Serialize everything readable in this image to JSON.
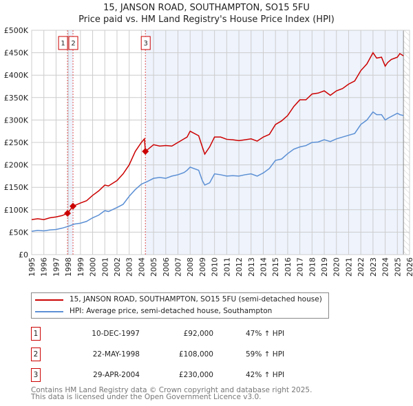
{
  "chart_data": {
    "type": "line",
    "title": "15, JANSON ROAD, SOUTHAMPTON, SO15 5FU",
    "subtitle": "Price paid vs. HM Land Registry's House Price Index (HPI)",
    "xlim": [
      1995,
      2026
    ],
    "ylim": [
      0,
      500000
    ],
    "x_ticks": [
      "1995",
      "1996",
      "1997",
      "1998",
      "1999",
      "2000",
      "2001",
      "2002",
      "2003",
      "2004",
      "2005",
      "2006",
      "2007",
      "2008",
      "2009",
      "2010",
      "2011",
      "2012",
      "2013",
      "2014",
      "2015",
      "2016",
      "2017",
      "2018",
      "2019",
      "2020",
      "2021",
      "2022",
      "2023",
      "2024",
      "2025",
      "2026"
    ],
    "y_ticks": [
      {
        "v": 0,
        "label": "£0"
      },
      {
        "v": 50000,
        "label": "£50K"
      },
      {
        "v": 100000,
        "label": "£100K"
      },
      {
        "v": 150000,
        "label": "£150K"
      },
      {
        "v": 200000,
        "label": "£200K"
      },
      {
        "v": 250000,
        "label": "£250K"
      },
      {
        "v": 300000,
        "label": "£300K"
      },
      {
        "v": 350000,
        "label": "£350K"
      },
      {
        "v": 400000,
        "label": "£400K"
      },
      {
        "v": 450000,
        "label": "£450K"
      },
      {
        "v": 500000,
        "label": "£500K"
      }
    ],
    "grid": true,
    "data_end": 2025.5,
    "series": [
      {
        "name": "15, JANSON ROAD, SOUTHAMPTON, SO15 5FU (semi-detached house)",
        "color": "#cc0000",
        "x": [
          1995,
          1995.5,
          1996,
          1996.5,
          1997,
          1997.5,
          1997.94,
          1998.39,
          1999,
          1999.5,
          2000,
          2000.5,
          2001,
          2001.3,
          2002,
          2002.5,
          2003,
          2003.5,
          2004,
          2004.25,
          2004.33,
          2005,
          2005.5,
          2006,
          2006.5,
          2007,
          2007.5,
          2007.75,
          2008,
          2008.7,
          2009,
          2009.2,
          2009.6,
          2010,
          2010.5,
          2011,
          2011.5,
          2012,
          2012.5,
          2013,
          2013.5,
          2014,
          2014.5,
          2015,
          2015.5,
          2016,
          2016.5,
          2017,
          2017.5,
          2018,
          2018.5,
          2019,
          2019.5,
          2020,
          2020.5,
          2021,
          2021.5,
          2022,
          2022.5,
          2023,
          2023.3,
          2023.7,
          2024,
          2024.2,
          2024.5,
          2025,
          2025.2,
          2025.5
        ],
        "y": [
          78000,
          80000,
          78000,
          82000,
          84000,
          87000,
          92000,
          108000,
          115000,
          120000,
          132000,
          142000,
          155000,
          153000,
          165000,
          180000,
          200000,
          230000,
          250000,
          258000,
          230000,
          245000,
          242000,
          243000,
          242000,
          250000,
          258000,
          262000,
          275000,
          265000,
          240000,
          224000,
          240000,
          262000,
          262000,
          257000,
          256000,
          254000,
          256000,
          258000,
          253000,
          262000,
          268000,
          290000,
          298000,
          310000,
          330000,
          345000,
          345000,
          358000,
          360000,
          365000,
          355000,
          365000,
          370000,
          380000,
          387000,
          410000,
          425000,
          450000,
          438000,
          440000,
          420000,
          428000,
          435000,
          440000,
          448000,
          443000
        ]
      },
      {
        "name": "HPI: Average price, semi-detached house, Southampton",
        "color": "#5b8fd4",
        "x": [
          1995,
          1995.5,
          1996,
          1996.5,
          1997,
          1997.5,
          1998,
          1998.5,
          1999,
          1999.5,
          2000,
          2000.5,
          2001,
          2001.3,
          2002,
          2002.5,
          2003,
          2003.5,
          2004,
          2004.5,
          2005,
          2005.5,
          2006,
          2006.5,
          2007,
          2007.5,
          2007.75,
          2008,
          2008.7,
          2009,
          2009.2,
          2009.6,
          2010,
          2010.5,
          2011,
          2011.5,
          2012,
          2012.5,
          2013,
          2013.5,
          2014,
          2014.5,
          2015,
          2015.5,
          2016,
          2016.5,
          2017,
          2017.5,
          2018,
          2018.5,
          2019,
          2019.5,
          2020,
          2020.5,
          2021,
          2021.5,
          2022,
          2022.5,
          2023,
          2023.3,
          2023.7,
          2024,
          2024.3,
          2025,
          2025.2,
          2025.5
        ],
        "y": [
          52000,
          54000,
          53000,
          55000,
          56000,
          59000,
          63000,
          68000,
          70000,
          74000,
          82000,
          88000,
          98000,
          96000,
          105000,
          112000,
          130000,
          145000,
          157000,
          163000,
          170000,
          172000,
          170000,
          175000,
          178000,
          183000,
          188000,
          195000,
          188000,
          165000,
          155000,
          160000,
          180000,
          178000,
          175000,
          176000,
          175000,
          178000,
          180000,
          175000,
          182000,
          192000,
          210000,
          213000,
          225000,
          235000,
          240000,
          243000,
          250000,
          251000,
          256000,
          252000,
          258000,
          262000,
          266000,
          270000,
          290000,
          300000,
          318000,
          312000,
          312000,
          300000,
          305000,
          315000,
          312000,
          310000
        ]
      }
    ],
    "sales": [
      {
        "id": "1",
        "x": 1997.94,
        "y": 92000,
        "date": "10-DEC-1997",
        "price": "£92,000",
        "hpi": "47% ↑ HPI"
      },
      {
        "id": "2",
        "x": 1998.39,
        "y": 108000,
        "date": "22-MAY-1998",
        "price": "£108,000",
        "hpi": "59% ↑ HPI"
      },
      {
        "id": "3",
        "x": 2004.33,
        "y": 230000,
        "date": "29-APR-2004",
        "price": "£230,000",
        "hpi": "42% ↑ HPI"
      }
    ]
  },
  "colors": {
    "property": "#cc0000",
    "hpi": "#5b8fd4",
    "shade": "#eef3fc"
  },
  "footer": {
    "line1": "Contains HM Land Registry data © Crown copyright and database right 2025.",
    "line2": "This data is licensed under the Open Government Licence v3.0."
  }
}
